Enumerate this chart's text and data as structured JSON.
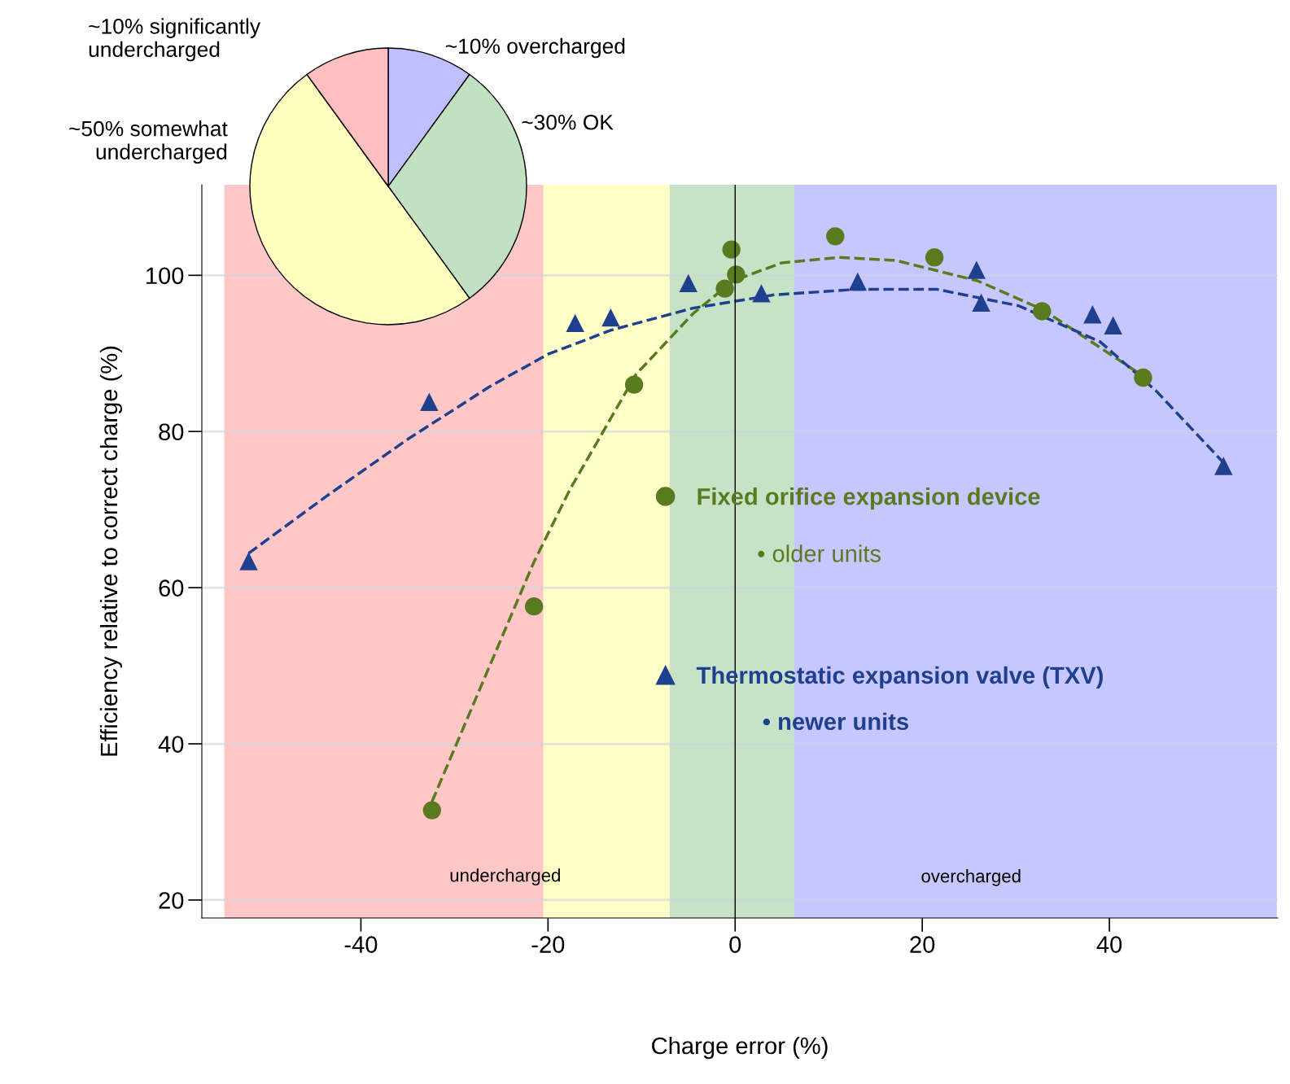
{
  "chart_data": [
    {
      "type": "scatter",
      "xlabel": "Charge error (%)",
      "ylabel": "Efficiency relative to correct charge (%)",
      "xlim": [
        -57,
        58
      ],
      "ylim": [
        17.7,
        111.6
      ],
      "xticks": [
        -40,
        -20,
        0,
        20,
        40
      ],
      "yticks": [
        20,
        40,
        60,
        80,
        100
      ],
      "grid": "y",
      "legend": "center",
      "series": [
        {
          "name": "Fixed orifice expansion device",
          "type": "scatter",
          "marker": "circle",
          "color": "#5a7a20",
          "x": [
            -32.4,
            -21.5,
            -10.8,
            -1.1,
            -0.4,
            0.1,
            10.7,
            21.3,
            32.8,
            43.6
          ],
          "values": [
            31.5,
            57.6,
            86.0,
            98.3,
            103.3,
            100.1,
            105.0,
            102.3,
            95.4,
            86.9
          ]
        },
        {
          "name": "Thermostatic expansion valve (TXV)",
          "type": "scatter",
          "marker": "triangle",
          "color": "#1f3f8f",
          "x": [
            -52.0,
            -32.7,
            -17.1,
            -13.3,
            -5.0,
            2.8,
            13.1,
            25.8,
            26.3,
            38.2,
            40.4,
            52.2
          ],
          "values": [
            63.4,
            83.8,
            93.9,
            94.6,
            99.0,
            97.7,
            99.2,
            100.7,
            96.5,
            95.0,
            93.6,
            75.6
          ]
        },
        {
          "type": "line",
          "line_style": "dashed",
          "marker": "none",
          "color": "#5a7a20",
          "x": [
            -32.4,
            -26.3,
            -21.5,
            -17.6,
            -10.6,
            -4.5,
            -0.2,
            5.0,
            11.1,
            17.2,
            25.9,
            32.9,
            43.6
          ],
          "values": [
            32.6,
            49.8,
            63.3,
            72.7,
            87.3,
            95.1,
            99.3,
            101.6,
            102.3,
            101.9,
            99.3,
            95.6,
            87.1
          ]
        },
        {
          "type": "line",
          "line_style": "dashed",
          "marker": "none",
          "color": "#1f3f8f",
          "x": [
            -52.0,
            -43.7,
            -35.0,
            -26.3,
            -20.0,
            -13.2,
            -4.5,
            4.2,
            12.9,
            21.6,
            30.3,
            39.0,
            45.0,
            52.2
          ],
          "values": [
            64.4,
            71.7,
            79.0,
            85.7,
            89.9,
            93.0,
            95.8,
            97.5,
            98.2,
            98.2,
            96.1,
            91.5,
            85.2,
            76.0
          ]
        }
      ],
      "bands": [
        {
          "axis": "x",
          "from": -54.6,
          "to": -20.5,
          "label": null,
          "color": "#ff0000"
        },
        {
          "axis": "x",
          "from": -20.5,
          "to": -7.0,
          "label": null,
          "color": "#ffff00"
        },
        {
          "axis": "x",
          "from": -7.0,
          "to": 6.3,
          "label": null,
          "color": "#008000"
        },
        {
          "axis": "x",
          "from": 6.3,
          "to": 57.9,
          "label": null,
          "color": "#0000ff"
        }
      ],
      "ref_lines": [
        {
          "axis": "x",
          "value": 0,
          "label": null,
          "color": "#000000"
        }
      ],
      "annotations": [
        "• older units",
        "• newer units",
        "undercharged",
        "overcharged"
      ]
    },
    {
      "type": "pie",
      "categories": [
        "~10% overcharged",
        "~30% OK",
        "~50% somewhat\nundercharged",
        "~10% significantly\nundercharged"
      ],
      "values": [
        10,
        30,
        50,
        10
      ],
      "colors": [
        "#bfbfff",
        "#c2e0c2",
        "#ffffc0",
        "#ffbfbf"
      ]
    }
  ]
}
